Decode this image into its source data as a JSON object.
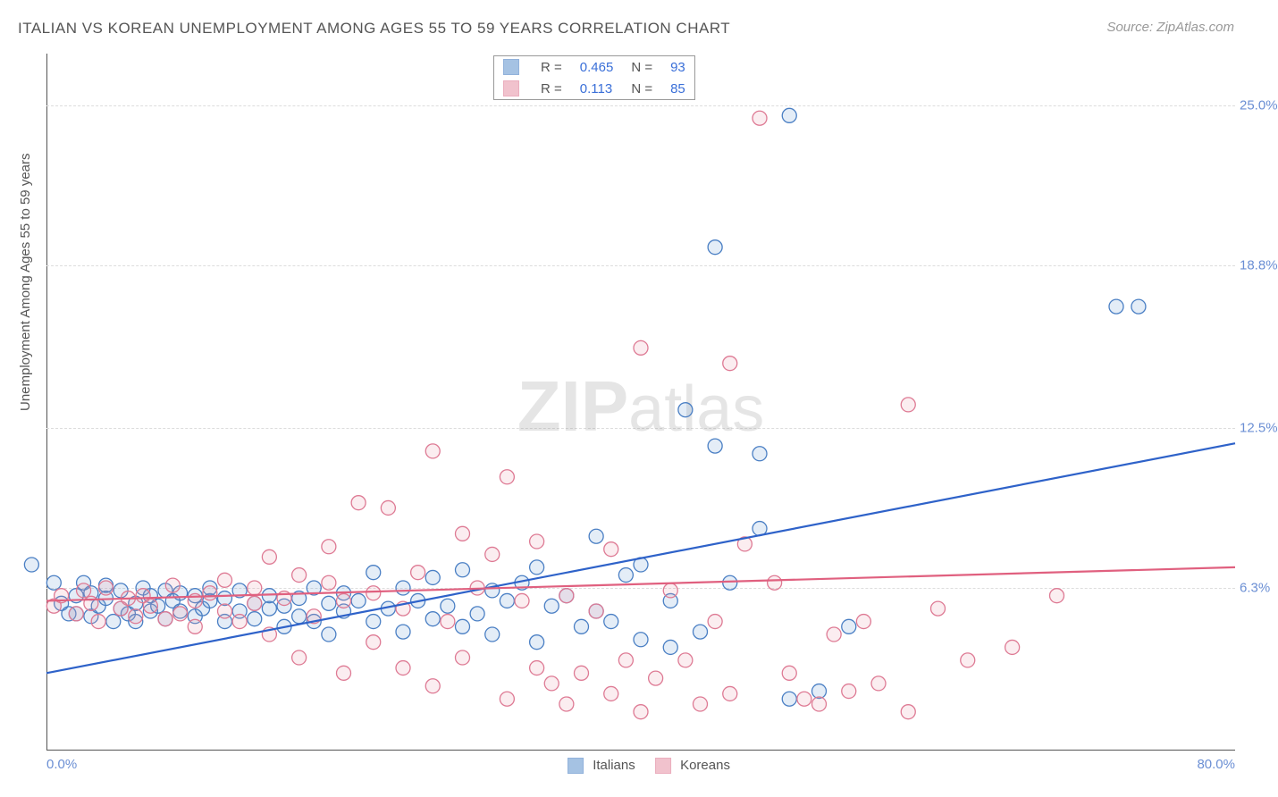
{
  "title": "ITALIAN VS KOREAN UNEMPLOYMENT AMONG AGES 55 TO 59 YEARS CORRELATION CHART",
  "source": "Source: ZipAtlas.com",
  "ylabel": "Unemployment Among Ages 55 to 59 years",
  "watermark": {
    "strong": "ZIP",
    "rest": "atlas"
  },
  "chart": {
    "type": "scatter",
    "xlim": [
      0,
      80
    ],
    "ylim": [
      0,
      27
    ],
    "xticks": [
      {
        "v": 0,
        "l": "0.0%"
      },
      {
        "v": 80,
        "l": "80.0%"
      }
    ],
    "yticks": [
      {
        "v": 6.3,
        "l": "6.3%"
      },
      {
        "v": 12.5,
        "l": "12.5%"
      },
      {
        "v": 18.8,
        "l": "18.8%"
      },
      {
        "v": 25.0,
        "l": "25.0%"
      }
    ],
    "background_color": "#ffffff",
    "grid_color": "#dddddd",
    "axis_color": "#555555",
    "marker_radius": 8,
    "marker_stroke_width": 1.3,
    "fill_opacity": 0.18,
    "line_width": 2.2,
    "series": [
      {
        "name": "Italians",
        "color": "#6b9bd1",
        "stroke": "#4a7fc4",
        "line_color": "#2e62c9",
        "R": "0.465",
        "N": "93",
        "trend": {
          "x1": 0,
          "y1": 3.0,
          "x2": 80,
          "y2": 11.9
        },
        "points": [
          [
            -1,
            7.2
          ],
          [
            0.5,
            6.5
          ],
          [
            1,
            5.7
          ],
          [
            1.5,
            5.3
          ],
          [
            2,
            6.0
          ],
          [
            2,
            5.3
          ],
          [
            2.5,
            6.5
          ],
          [
            3,
            5.2
          ],
          [
            3,
            6.1
          ],
          [
            3.5,
            5.6
          ],
          [
            4,
            5.9
          ],
          [
            4,
            6.4
          ],
          [
            4.5,
            5.0
          ],
          [
            5,
            5.5
          ],
          [
            5,
            6.2
          ],
          [
            5.5,
            5.3
          ],
          [
            6,
            5.7
          ],
          [
            6,
            5.0
          ],
          [
            6.5,
            6.3
          ],
          [
            7,
            5.4
          ],
          [
            7,
            6.0
          ],
          [
            7.5,
            5.6
          ],
          [
            8,
            6.2
          ],
          [
            8,
            5.1
          ],
          [
            8.5,
            5.8
          ],
          [
            9,
            5.4
          ],
          [
            9,
            6.1
          ],
          [
            10,
            5.2
          ],
          [
            10,
            6.0
          ],
          [
            10.5,
            5.5
          ],
          [
            11,
            5.8
          ],
          [
            11,
            6.3
          ],
          [
            12,
            5.0
          ],
          [
            12,
            5.9
          ],
          [
            13,
            5.4
          ],
          [
            13,
            6.2
          ],
          [
            14,
            5.1
          ],
          [
            14,
            5.7
          ],
          [
            15,
            5.5
          ],
          [
            15,
            6.0
          ],
          [
            16,
            4.8
          ],
          [
            16,
            5.6
          ],
          [
            17,
            5.2
          ],
          [
            17,
            5.9
          ],
          [
            18,
            6.3
          ],
          [
            18,
            5.0
          ],
          [
            19,
            5.7
          ],
          [
            19,
            4.5
          ],
          [
            20,
            5.4
          ],
          [
            20,
            6.1
          ],
          [
            21,
            5.8
          ],
          [
            22,
            5.0
          ],
          [
            22,
            6.9
          ],
          [
            23,
            5.5
          ],
          [
            24,
            4.6
          ],
          [
            24,
            6.3
          ],
          [
            25,
            5.8
          ],
          [
            26,
            5.1
          ],
          [
            26,
            6.7
          ],
          [
            27,
            5.6
          ],
          [
            28,
            4.8
          ],
          [
            28,
            7.0
          ],
          [
            29,
            5.3
          ],
          [
            30,
            6.2
          ],
          [
            30,
            4.5
          ],
          [
            31,
            5.8
          ],
          [
            32,
            6.5
          ],
          [
            33,
            4.2
          ],
          [
            33,
            7.1
          ],
          [
            34,
            5.6
          ],
          [
            35,
            6.0
          ],
          [
            36,
            4.8
          ],
          [
            37,
            5.4
          ],
          [
            37,
            8.3
          ],
          [
            38,
            5.0
          ],
          [
            39,
            6.8
          ],
          [
            40,
            4.3
          ],
          [
            40,
            7.2
          ],
          [
            42,
            4.0
          ],
          [
            42,
            5.8
          ],
          [
            43,
            13.2
          ],
          [
            44,
            4.6
          ],
          [
            45,
            11.8
          ],
          [
            45,
            19.5
          ],
          [
            46,
            6.5
          ],
          [
            48,
            11.5
          ],
          [
            48,
            8.6
          ],
          [
            50,
            2.0
          ],
          [
            50,
            24.6
          ],
          [
            52,
            2.3
          ],
          [
            54,
            4.8
          ],
          [
            72,
            17.2
          ],
          [
            73.5,
            17.2
          ]
        ]
      },
      {
        "name": "Koreans",
        "color": "#e89aad",
        "stroke": "#de7a94",
        "line_color": "#e0607f",
        "R": "0.113",
        "N": "85",
        "trend": {
          "x1": 0,
          "y1": 5.8,
          "x2": 80,
          "y2": 7.1
        },
        "points": [
          [
            0.5,
            5.6
          ],
          [
            1,
            6.0
          ],
          [
            2,
            5.3
          ],
          [
            2.5,
            6.2
          ],
          [
            3,
            5.7
          ],
          [
            3.5,
            5.0
          ],
          [
            4,
            6.3
          ],
          [
            5,
            5.5
          ],
          [
            5.5,
            5.9
          ],
          [
            6,
            5.2
          ],
          [
            6.5,
            6.0
          ],
          [
            7,
            5.6
          ],
          [
            8,
            5.1
          ],
          [
            8.5,
            6.4
          ],
          [
            9,
            5.3
          ],
          [
            10,
            5.8
          ],
          [
            10,
            4.8
          ],
          [
            11,
            6.1
          ],
          [
            12,
            5.4
          ],
          [
            12,
            6.6
          ],
          [
            13,
            5.0
          ],
          [
            14,
            5.7
          ],
          [
            14,
            6.3
          ],
          [
            15,
            7.5
          ],
          [
            15,
            4.5
          ],
          [
            16,
            5.9
          ],
          [
            17,
            6.8
          ],
          [
            17,
            3.6
          ],
          [
            18,
            5.2
          ],
          [
            19,
            6.5
          ],
          [
            19,
            7.9
          ],
          [
            20,
            3.0
          ],
          [
            20,
            5.8
          ],
          [
            21,
            9.6
          ],
          [
            22,
            4.2
          ],
          [
            22,
            6.1
          ],
          [
            23,
            9.4
          ],
          [
            24,
            3.2
          ],
          [
            24,
            5.5
          ],
          [
            25,
            6.9
          ],
          [
            26,
            11.6
          ],
          [
            26,
            2.5
          ],
          [
            27,
            5.0
          ],
          [
            28,
            8.4
          ],
          [
            28,
            3.6
          ],
          [
            29,
            6.3
          ],
          [
            30,
            7.6
          ],
          [
            31,
            2.0
          ],
          [
            31,
            10.6
          ],
          [
            32,
            5.8
          ],
          [
            33,
            3.2
          ],
          [
            33,
            8.1
          ],
          [
            34,
            2.6
          ],
          [
            35,
            6.0
          ],
          [
            35,
            1.8
          ],
          [
            36,
            3.0
          ],
          [
            37,
            5.4
          ],
          [
            38,
            2.2
          ],
          [
            38,
            7.8
          ],
          [
            39,
            3.5
          ],
          [
            40,
            1.5
          ],
          [
            40,
            15.6
          ],
          [
            41,
            2.8
          ],
          [
            42,
            6.2
          ],
          [
            43,
            3.5
          ],
          [
            44,
            1.8
          ],
          [
            45,
            5.0
          ],
          [
            46,
            15.0
          ],
          [
            46,
            2.2
          ],
          [
            47,
            8.0
          ],
          [
            48,
            24.5
          ],
          [
            49,
            6.5
          ],
          [
            50,
            3.0
          ],
          [
            51,
            2.0
          ],
          [
            52,
            1.8
          ],
          [
            53,
            4.5
          ],
          [
            54,
            2.3
          ],
          [
            55,
            5.0
          ],
          [
            56,
            2.6
          ],
          [
            58,
            1.5
          ],
          [
            58,
            13.4
          ],
          [
            60,
            5.5
          ],
          [
            62,
            3.5
          ],
          [
            65,
            4.0
          ],
          [
            68,
            6.0
          ]
        ]
      }
    ],
    "legend_stats": {
      "R_label": "R =",
      "N_label": "N ="
    },
    "bottom_legend": [
      {
        "label": "Italians",
        "idx": 0
      },
      {
        "label": "Koreans",
        "idx": 1
      }
    ]
  }
}
